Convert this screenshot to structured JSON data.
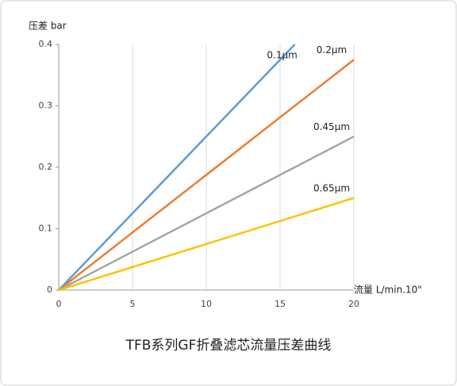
{
  "chart_data": {
    "type": "line",
    "title": "TFB系列GF折叠滤芯流量压差曲线",
    "y_label": "压差 bar",
    "x_label": "流量  L/min.10\"",
    "xlim": [
      0,
      20
    ],
    "xticks": [
      0,
      5,
      10,
      15,
      20
    ],
    "ylim": [
      0,
      0.4
    ],
    "yticks": [
      0,
      0.1,
      0.2,
      0.3,
      0.4
    ],
    "grid": "x",
    "series": [
      {
        "name": "0.1μm",
        "color": "#5b9bd5",
        "x": [
          0,
          16
        ],
        "values": [
          0,
          0.4
        ]
      },
      {
        "name": "0.2μm",
        "color": "#ed7d31",
        "x": [
          0,
          20
        ],
        "values": [
          0,
          0.375
        ]
      },
      {
        "name": "0.45μm",
        "color": "#a5a5a5",
        "x": [
          0,
          20
        ],
        "values": [
          0,
          0.25
        ]
      },
      {
        "name": "0.65μm",
        "color": "#ffc000",
        "x": [
          0,
          20
        ],
        "values": [
          0,
          0.15
        ]
      }
    ]
  }
}
